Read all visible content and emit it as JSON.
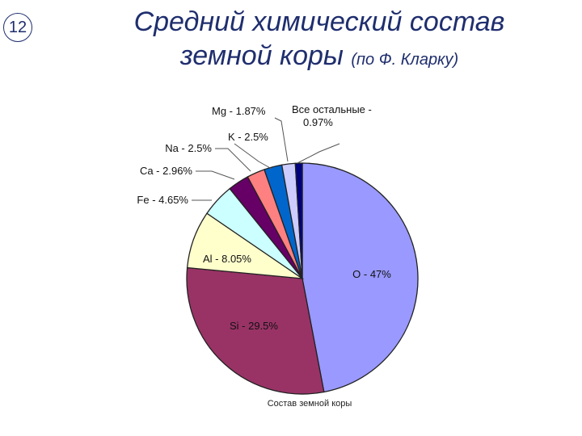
{
  "slide_number": "12",
  "title": {
    "line1": "Средний химический состав",
    "line2_main": "земной  коры",
    "line2_sub": "(по Ф. Кларку)"
  },
  "chart_data": {
    "type": "pie",
    "caption": "Состав земной коры",
    "slices": [
      {
        "name": "O",
        "label": "O - 47%",
        "value": 47,
        "color": "#9999ff"
      },
      {
        "name": "Si",
        "label": "Si - 29.5%",
        "value": 29.5,
        "color": "#993366"
      },
      {
        "name": "Al",
        "label": "Al - 8.05%",
        "value": 8.05,
        "color": "#ffffcc"
      },
      {
        "name": "Fe",
        "label": "Fe - 4.65%",
        "value": 4.65,
        "color": "#ccffff"
      },
      {
        "name": "Ca",
        "label": "Ca - 2.96%",
        "value": 2.96,
        "color": "#660066"
      },
      {
        "name": "Na",
        "label": "Na - 2.5%",
        "value": 2.5,
        "color": "#ff8080"
      },
      {
        "name": "K",
        "label": "K - 2.5%",
        "value": 2.5,
        "color": "#0066cc"
      },
      {
        "name": "Mg",
        "label": "Mg - 1.87%",
        "value": 1.87,
        "color": "#ccccff"
      },
      {
        "name": "other",
        "label": "Все остальные -\n0.97%",
        "value": 0.97,
        "color": "#000080"
      }
    ]
  }
}
